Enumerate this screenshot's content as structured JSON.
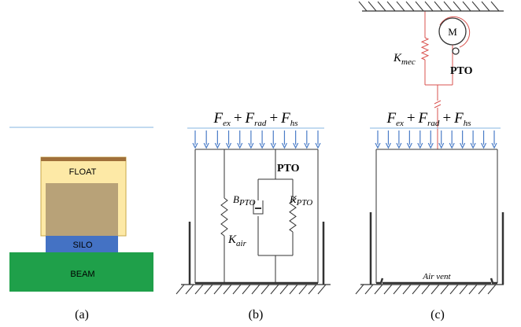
{
  "panel_a": {
    "float": "FLOAT",
    "silo": "SILO",
    "beam": "BEAM",
    "caption": "(a)"
  },
  "panel_b": {
    "force": [
      {
        "base": "F",
        "sub": "ex"
      },
      "+",
      {
        "base": "F",
        "sub": "rad"
      },
      "+",
      {
        "base": "F",
        "sub": "hs"
      }
    ],
    "pto": "PTO",
    "damper": {
      "base": "B",
      "sub": "PTO"
    },
    "spring": {
      "base": "K",
      "sub": "PTO"
    },
    "air_spring": {
      "base": "K",
      "sub": "air"
    },
    "caption": "(b)"
  },
  "panel_c": {
    "force": [
      {
        "base": "F",
        "sub": "ex"
      },
      "+",
      {
        "base": "F",
        "sub": "rad"
      },
      "+",
      {
        "base": "F",
        "sub": "hs"
      }
    ],
    "motor": "M",
    "pto": "PTO",
    "spring": {
      "base": "K",
      "sub": "mec"
    },
    "vent": "Air vent",
    "caption": "(c)"
  }
}
